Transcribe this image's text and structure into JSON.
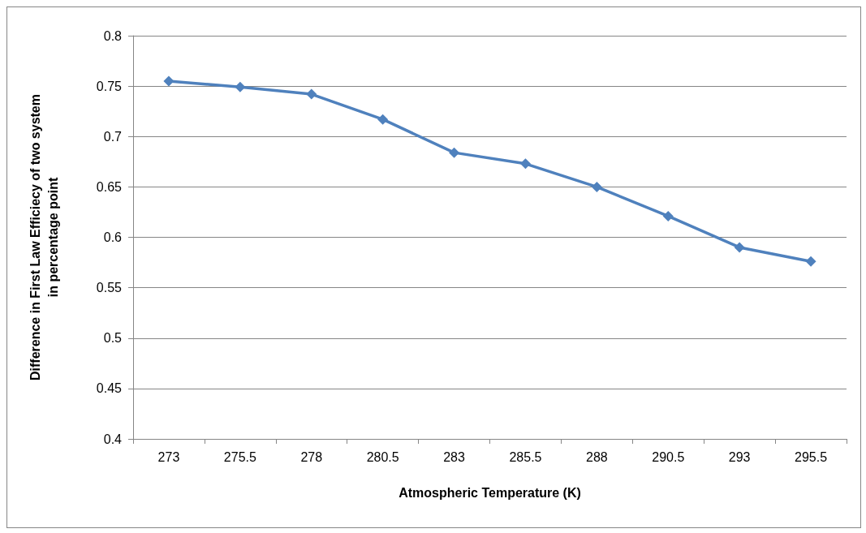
{
  "chart_data": {
    "type": "line",
    "xlabel": "Atmospheric Temperature (K)",
    "ylabel": "Difference in First Law Efficiecy of two system\nin percentage point",
    "categories": [
      "273",
      "275.5",
      "278",
      "280.5",
      "283",
      "285.5",
      "288",
      "290.5",
      "293",
      "295.5"
    ],
    "series": [
      {
        "color": "#4f81bd",
        "values": [
          0.755,
          0.749,
          0.742,
          0.717,
          0.684,
          0.673,
          0.65,
          0.621,
          0.59,
          0.576
        ]
      }
    ],
    "ylim": [
      0.4,
      0.8
    ],
    "yticks": [
      0.4,
      0.45,
      0.5,
      0.55,
      0.6,
      0.65,
      0.7,
      0.75,
      0.8
    ],
    "grid": "y",
    "marker": "diamond",
    "line_style": "solid"
  }
}
